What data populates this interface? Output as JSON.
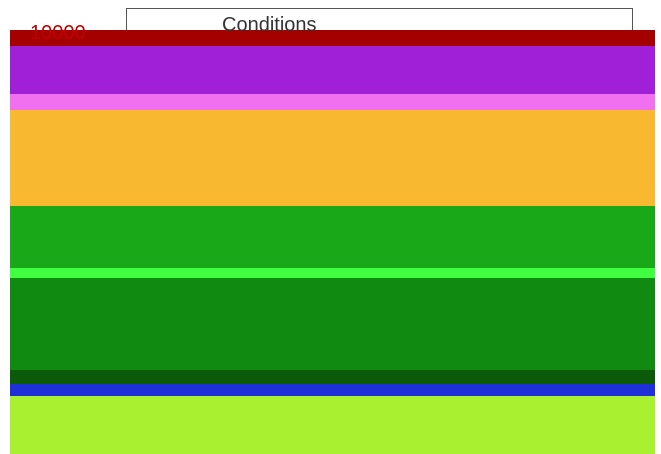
{
  "texts": {
    "axis_top_label": "10000",
    "legend_title": "Conditions"
  }
}
